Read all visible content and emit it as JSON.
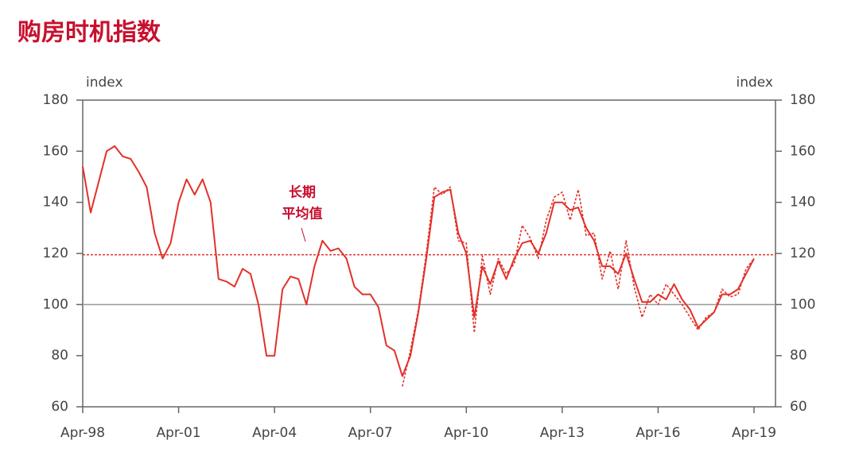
{
  "chart_data": {
    "type": "line",
    "title": "购房时机指数",
    "y_label": "index",
    "y2_label": "index",
    "x": [
      "Apr-98",
      "Jul-98",
      "Oct-98",
      "Jan-99",
      "Apr-99",
      "Jul-99",
      "Oct-99",
      "Jan-00",
      "Apr-00",
      "Jul-00",
      "Oct-00",
      "Jan-01",
      "Apr-01",
      "Jul-01",
      "Oct-01",
      "Jan-02",
      "Apr-02",
      "Jul-02",
      "Oct-02",
      "Jan-03",
      "Apr-03",
      "Jul-03",
      "Oct-03",
      "Jan-04",
      "Apr-04",
      "Jul-04",
      "Oct-04",
      "Jan-05",
      "Apr-05",
      "Jul-05",
      "Oct-05",
      "Jan-06",
      "Apr-06",
      "Jul-06",
      "Oct-06",
      "Jan-07",
      "Apr-07",
      "Jul-07",
      "Oct-07",
      "Jan-08",
      "Apr-08",
      "Jul-08",
      "Oct-08",
      "Jan-09",
      "Apr-09",
      "Jul-09",
      "Oct-09",
      "Jan-10",
      "Apr-10",
      "Jul-10",
      "Oct-10",
      "Jan-11",
      "Apr-11",
      "Jul-11",
      "Oct-11",
      "Jan-12",
      "Apr-12",
      "Jul-12",
      "Oct-12",
      "Jan-13",
      "Apr-13",
      "Jul-13",
      "Oct-13",
      "Jan-14",
      "Apr-14",
      "Jul-14",
      "Oct-14",
      "Jan-15",
      "Apr-15",
      "Jul-15",
      "Oct-15",
      "Jan-16",
      "Apr-16",
      "Jul-16",
      "Oct-16",
      "Jan-17",
      "Apr-17",
      "Jul-17",
      "Oct-17",
      "Jan-18",
      "Apr-18",
      "Jul-18",
      "Oct-18",
      "Jan-19",
      "Apr-19"
    ],
    "series": [
      {
        "color": "#e2312a",
        "dashed": false,
        "values": [
          154,
          136,
          148,
          160,
          162,
          158,
          157,
          152,
          146,
          128,
          118,
          124,
          140,
          149,
          143,
          149,
          140,
          110,
          109,
          107,
          114,
          112,
          100,
          80,
          80,
          106,
          111,
          110,
          100,
          115,
          125,
          121,
          122,
          118,
          107,
          104,
          104,
          99,
          84,
          82,
          72,
          80,
          97,
          118,
          142,
          144,
          145,
          128,
          120,
          95,
          115,
          108,
          117,
          110,
          118,
          124,
          125,
          120,
          128,
          140,
          140,
          137,
          138,
          130,
          125,
          115,
          115,
          112,
          120,
          110,
          101,
          101,
          104,
          102,
          108,
          102,
          98,
          91,
          94,
          97,
          104,
          104,
          106,
          112,
          118
        ]
      },
      {
        "color": "#e2312a",
        "dashed": true,
        "values": [
          null,
          null,
          null,
          null,
          null,
          null,
          null,
          null,
          null,
          null,
          null,
          null,
          null,
          null,
          null,
          null,
          null,
          null,
          null,
          null,
          null,
          null,
          null,
          null,
          null,
          null,
          null,
          null,
          null,
          null,
          null,
          null,
          null,
          null,
          null,
          null,
          null,
          null,
          null,
          null,
          68,
          82,
          98,
          120,
          146,
          143,
          146,
          125,
          124,
          89,
          119,
          104,
          118,
          112,
          116,
          131,
          126,
          118,
          133,
          142,
          144,
          133,
          145,
          127,
          128,
          110,
          121,
          106,
          125,
          107,
          95,
          104,
          100,
          108,
          104,
          100,
          95,
          90,
          95,
          97,
          106,
          103,
          104,
          114,
          118
        ]
      }
    ],
    "xticks": [
      "Apr-98",
      "Apr-01",
      "Apr-04",
      "Apr-07",
      "Apr-10",
      "Apr-13",
      "Apr-16",
      "Apr-19"
    ],
    "ylim": [
      60,
      180
    ],
    "yticks": [
      60,
      80,
      100,
      120,
      140,
      160,
      180
    ],
    "y2lim": [
      60,
      180
    ],
    "y2ticks": [
      60,
      80,
      100,
      120,
      140,
      160,
      180
    ],
    "average": {
      "value": 119.5,
      "label": [
        "长期",
        "平均值"
      ]
    },
    "baseline": 100
  }
}
